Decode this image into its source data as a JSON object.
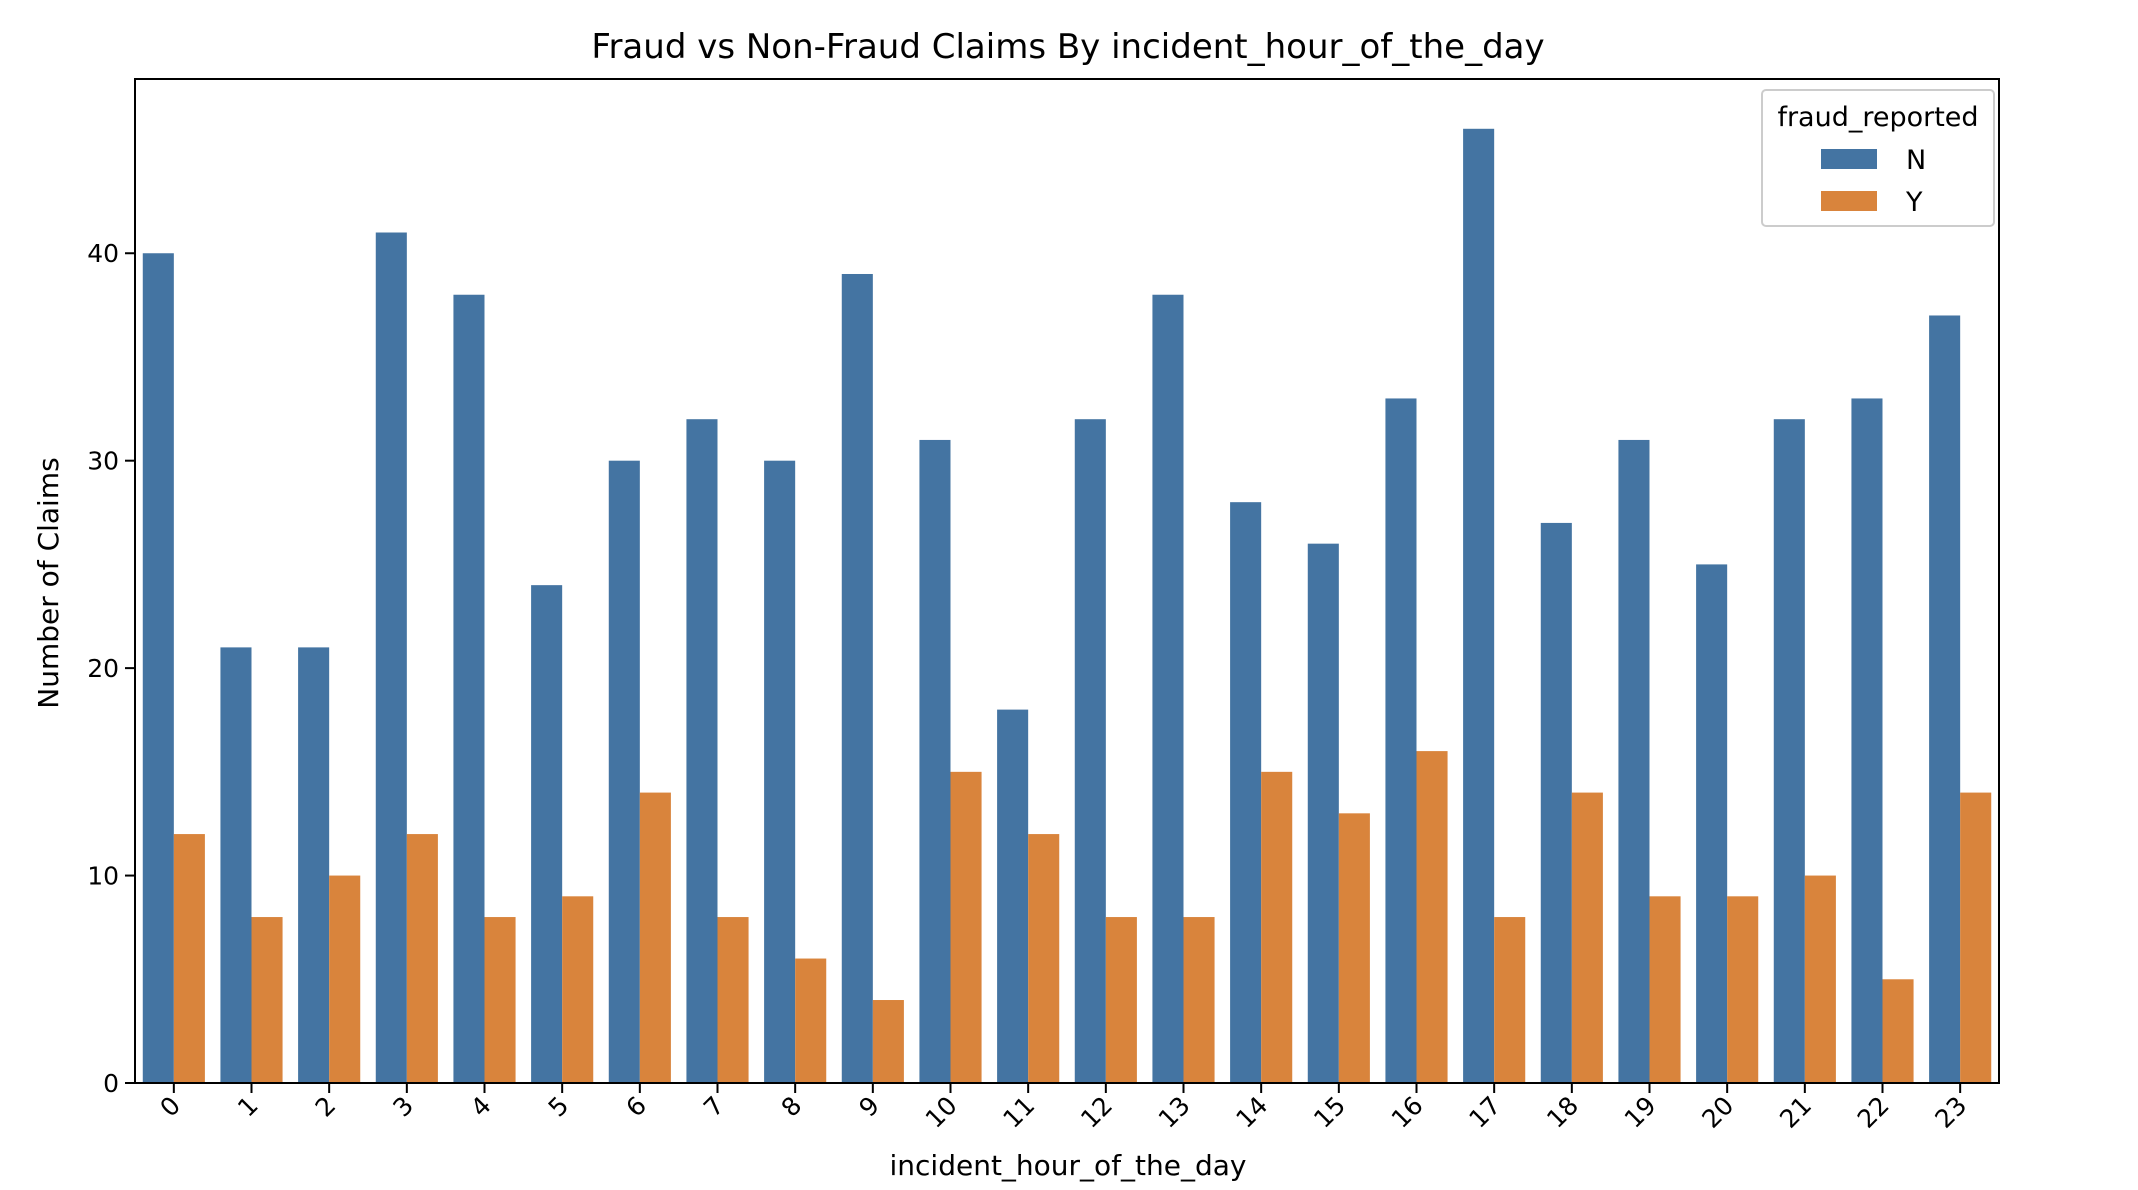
{
  "chart_data": {
    "type": "bar",
    "title": "Fraud vs Non-Fraud Claims By incident_hour_of_the_day",
    "xlabel": "incident_hour_of_the_day",
    "ylabel": "Number of Claims",
    "categories": [
      "0",
      "1",
      "2",
      "3",
      "4",
      "5",
      "6",
      "7",
      "8",
      "9",
      "10",
      "11",
      "12",
      "13",
      "14",
      "15",
      "16",
      "17",
      "18",
      "19",
      "20",
      "21",
      "22",
      "23"
    ],
    "series": [
      {
        "name": "N",
        "color": "#4474a2",
        "values": [
          40,
          21,
          21,
          41,
          38,
          24,
          30,
          32,
          30,
          39,
          31,
          18,
          32,
          38,
          28,
          26,
          33,
          46,
          27,
          31,
          25,
          32,
          33,
          37
        ]
      },
      {
        "name": "Y",
        "color": "#d9843c",
        "values": [
          12,
          8,
          10,
          12,
          8,
          9,
          14,
          8,
          6,
          4,
          15,
          12,
          8,
          8,
          15,
          13,
          16,
          8,
          14,
          9,
          9,
          10,
          5,
          14
        ]
      }
    ],
    "yticks": [
      0,
      10,
      20,
      30,
      40
    ],
    "ylim": [
      0,
      48.4
    ],
    "grid": false,
    "legend": {
      "title": "fraud_reported",
      "position": "top-right"
    }
  }
}
